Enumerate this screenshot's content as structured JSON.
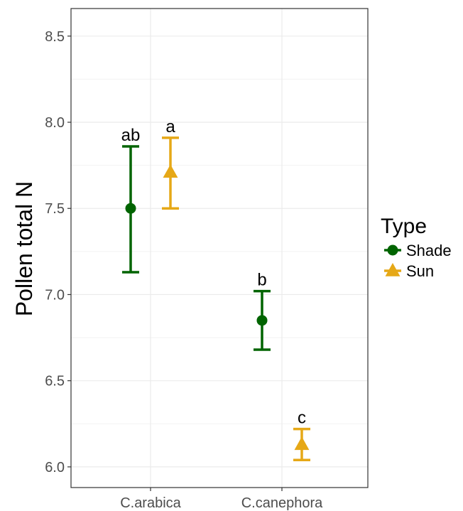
{
  "chart_data": {
    "type": "errorbar",
    "ylabel": "Pollen total N",
    "xlabel": "",
    "ylim": [
      5.88,
      8.66
    ],
    "yticks": [
      6.0,
      6.5,
      7.0,
      7.5,
      8.0,
      8.5
    ],
    "ytick_labels": [
      "6.0",
      "6.5",
      "7.0",
      "7.5",
      "8.0",
      "8.5"
    ],
    "categories": [
      "C.arabica",
      "C.canephora"
    ],
    "grid": true,
    "legend": {
      "title": "Type",
      "position": "right"
    },
    "series": [
      {
        "name": "Shade",
        "color": "#006400",
        "marker": "circle",
        "points": [
          {
            "category": "C.arabica",
            "mean": 7.5,
            "lower": 7.13,
            "upper": 7.86,
            "label": "ab"
          },
          {
            "category": "C.canephora",
            "mean": 6.85,
            "lower": 6.68,
            "upper": 7.02,
            "label": "b"
          }
        ]
      },
      {
        "name": "Sun",
        "color": "#E6A817",
        "marker": "triangle",
        "points": [
          {
            "category": "C.arabica",
            "mean": 7.71,
            "lower": 7.5,
            "upper": 7.91,
            "label": "a"
          },
          {
            "category": "C.canephora",
            "mean": 6.13,
            "lower": 6.04,
            "upper": 6.22,
            "label": "c"
          }
        ]
      }
    ]
  }
}
